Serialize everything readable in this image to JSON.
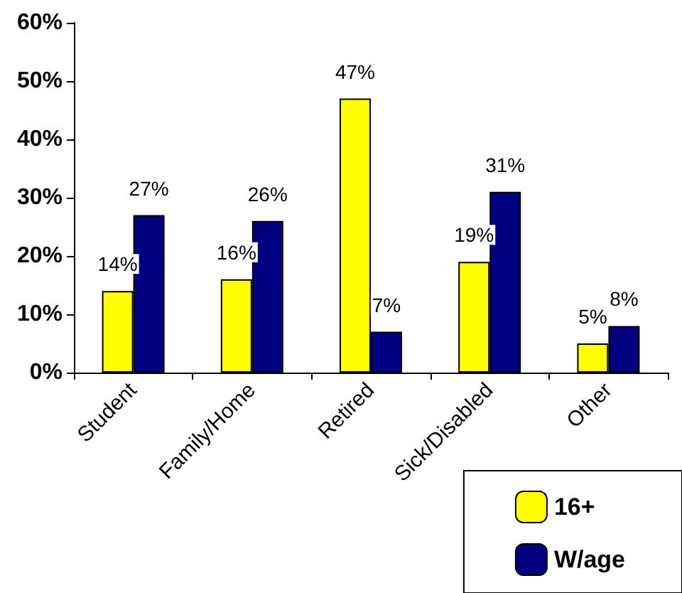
{
  "chart_data": {
    "type": "bar",
    "categories": [
      "Student",
      "Family/Home",
      "Retired",
      "Sick/Disabled",
      "Other"
    ],
    "series": [
      {
        "name": "16+",
        "color": "#ffff00",
        "values": [
          14,
          16,
          47,
          19,
          5
        ],
        "value_labels": [
          "14%",
          "16%",
          "47%",
          "19%",
          "5%"
        ]
      },
      {
        "name": "W/age",
        "color": "#000080",
        "values": [
          27,
          26,
          7,
          31,
          8
        ],
        "value_labels": [
          "27%",
          "26%",
          "7%",
          "31%",
          "8%"
        ]
      }
    ],
    "ylim": [
      0,
      60
    ],
    "yticks": [
      {
        "value": 0,
        "label": "0%"
      },
      {
        "value": 10,
        "label": "10%"
      },
      {
        "value": 20,
        "label": "20%"
      },
      {
        "value": 30,
        "label": "30%"
      },
      {
        "value": 40,
        "label": "40%"
      },
      {
        "value": 50,
        "label": "50%"
      },
      {
        "value": 60,
        "label": "60%"
      }
    ],
    "grid": false,
    "legend": "bottom right"
  }
}
